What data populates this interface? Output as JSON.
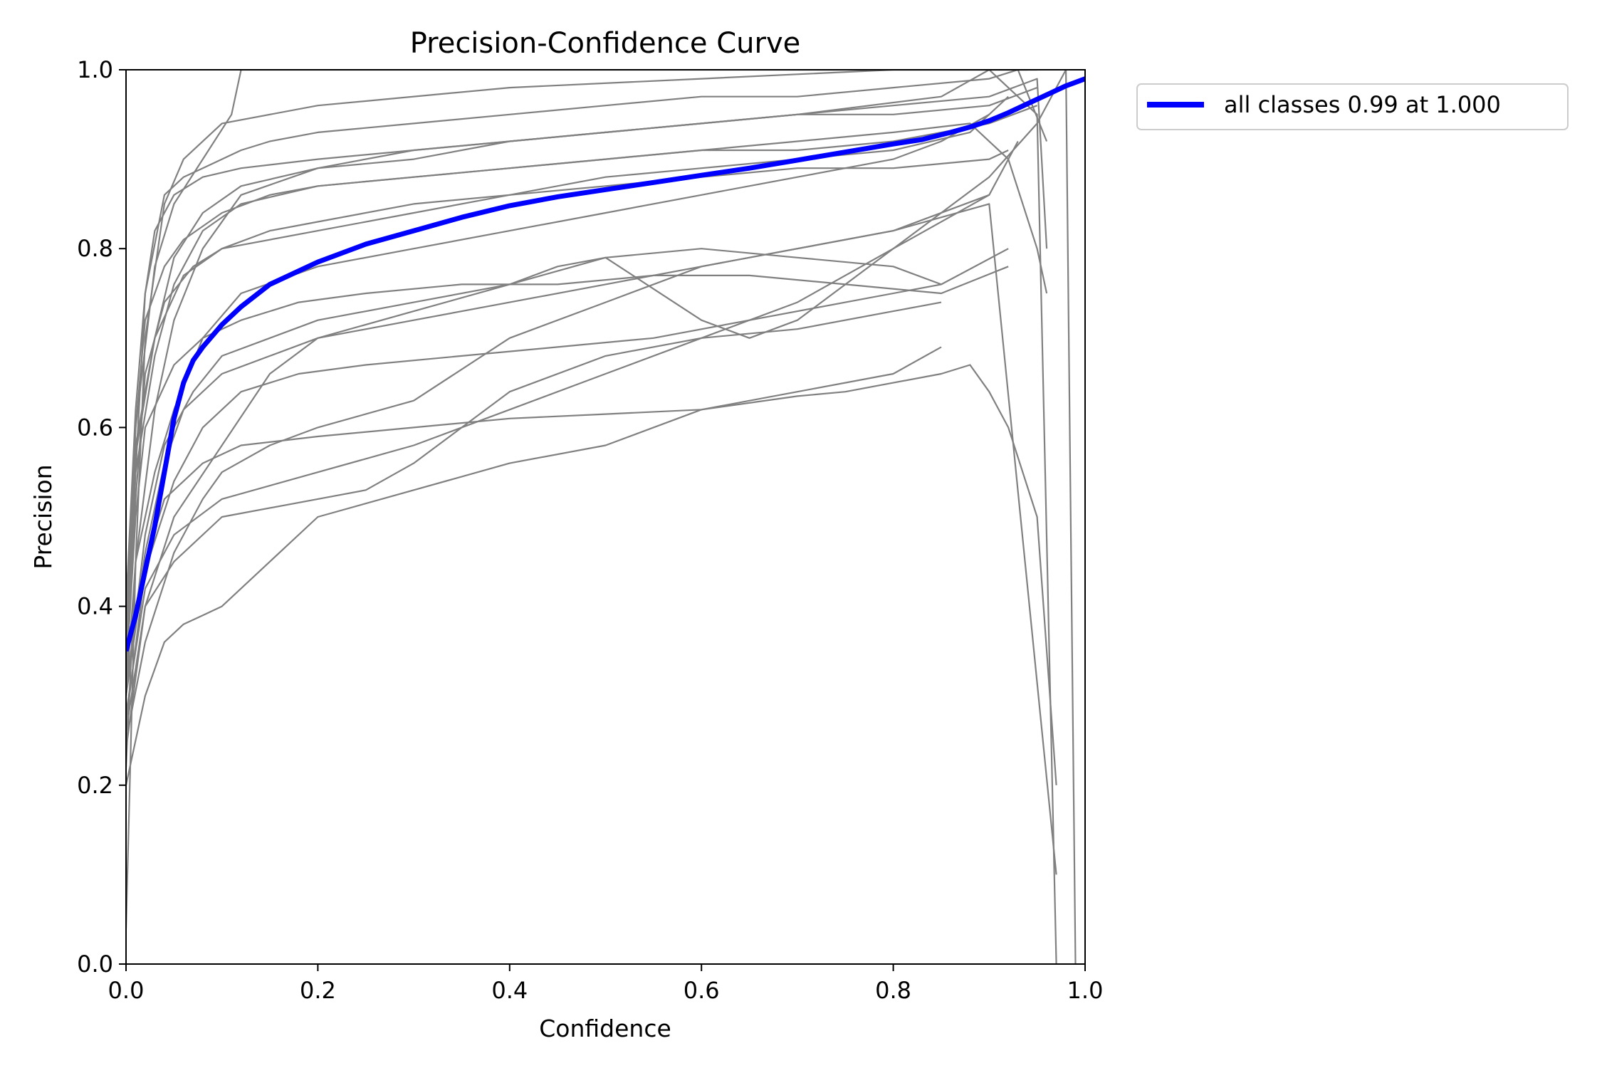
{
  "chart_data": {
    "type": "line",
    "title": "Precision-Confidence Curve",
    "xlabel": "Confidence",
    "ylabel": "Precision",
    "xlim": [
      0.0,
      1.0
    ],
    "ylim": [
      0.0,
      1.0
    ],
    "x_ticks": [
      "0.0",
      "0.2",
      "0.4",
      "0.6",
      "0.8",
      "1.0"
    ],
    "y_ticks": [
      "0.0",
      "0.2",
      "0.4",
      "0.6",
      "0.8",
      "1.0"
    ],
    "grid": false,
    "legend": {
      "placement": "outside-top-right",
      "entries": [
        "all classes 0.99 at 1.000"
      ]
    },
    "colors": {
      "per_class": "#808080",
      "all_classes": "#0000ff"
    },
    "series": [
      {
        "name": "all classes 0.99 at 1.000",
        "color": "#0000ff",
        "x": [
          0.0,
          0.01,
          0.02,
          0.03,
          0.04,
          0.05,
          0.06,
          0.07,
          0.08,
          0.1,
          0.12,
          0.15,
          0.18,
          0.2,
          0.25,
          0.3,
          0.35,
          0.4,
          0.45,
          0.5,
          0.55,
          0.6,
          0.65,
          0.7,
          0.75,
          0.8,
          0.83,
          0.86,
          0.88,
          0.9,
          0.92,
          0.94,
          0.96,
          0.98,
          1.0
        ],
        "y": [
          0.35,
          0.39,
          0.44,
          0.49,
          0.55,
          0.61,
          0.65,
          0.675,
          0.69,
          0.715,
          0.735,
          0.76,
          0.775,
          0.785,
          0.805,
          0.82,
          0.835,
          0.848,
          0.858,
          0.866,
          0.874,
          0.882,
          0.89,
          0.899,
          0.908,
          0.917,
          0.922,
          0.93,
          0.936,
          0.943,
          0.952,
          0.962,
          0.972,
          0.982,
          0.99
        ]
      },
      {
        "color": "#808080",
        "x": [
          0.0,
          0.01,
          0.02,
          0.04,
          0.06,
          0.1,
          0.2,
          0.4,
          0.6,
          0.8,
          0.9,
          0.95,
          0.97
        ],
        "y": [
          0.04,
          0.45,
          0.7,
          0.85,
          0.9,
          0.94,
          0.96,
          0.98,
          0.99,
          1.0,
          1.0,
          0.95,
          0.0
        ]
      },
      {
        "color": "#808080",
        "x": [
          0.0,
          0.01,
          0.03,
          0.05,
          0.08,
          0.12,
          0.2,
          0.3,
          0.5,
          0.7,
          0.85,
          0.9,
          0.95
        ],
        "y": [
          0.22,
          0.45,
          0.62,
          0.72,
          0.8,
          0.86,
          0.89,
          0.91,
          0.93,
          0.95,
          0.97,
          1.0,
          1.0
        ]
      },
      {
        "color": "#808080",
        "x": [
          0.0,
          0.01,
          0.03,
          0.05,
          0.08,
          0.12,
          0.2,
          0.3,
          0.4,
          0.5,
          0.6,
          0.7,
          0.8,
          0.85,
          0.9
        ],
        "y": [
          0.3,
          0.45,
          0.55,
          0.62,
          0.7,
          0.75,
          0.78,
          0.8,
          0.82,
          0.84,
          0.86,
          0.88,
          0.9,
          0.92,
          0.95
        ]
      },
      {
        "color": "#808080",
        "x": [
          0.0,
          0.02,
          0.05,
          0.08,
          0.1,
          0.15,
          0.2,
          0.3,
          0.4,
          0.5,
          0.6,
          0.7,
          0.8,
          0.9,
          0.93
        ],
        "y": [
          0.25,
          0.36,
          0.46,
          0.52,
          0.55,
          0.58,
          0.6,
          0.63,
          0.7,
          0.74,
          0.78,
          0.8,
          0.82,
          0.86,
          0.92
        ]
      },
      {
        "color": "#808080",
        "x": [
          0.0,
          0.02,
          0.04,
          0.06,
          0.08,
          0.1,
          0.15,
          0.2,
          0.3,
          0.4,
          0.5,
          0.6,
          0.7,
          0.8,
          0.85
        ],
        "y": [
          0.2,
          0.3,
          0.36,
          0.38,
          0.39,
          0.4,
          0.45,
          0.5,
          0.53,
          0.56,
          0.58,
          0.62,
          0.64,
          0.66,
          0.69
        ]
      },
      {
        "color": "#808080",
        "x": [
          0.0,
          0.02,
          0.04,
          0.08,
          0.12,
          0.2,
          0.3,
          0.4,
          0.5,
          0.6,
          0.7,
          0.75,
          0.8,
          0.85,
          0.88,
          0.9,
          0.92,
          0.95,
          0.97
        ],
        "y": [
          0.3,
          0.45,
          0.52,
          0.56,
          0.58,
          0.59,
          0.6,
          0.61,
          0.615,
          0.62,
          0.635,
          0.64,
          0.65,
          0.66,
          0.67,
          0.64,
          0.6,
          0.5,
          0.2
        ]
      },
      {
        "color": "#808080",
        "x": [
          0.0,
          0.01,
          0.02,
          0.04,
          0.06,
          0.08,
          0.1,
          0.12,
          0.15,
          0.2,
          0.3,
          0.4,
          0.5,
          0.6,
          0.7,
          0.8,
          0.9,
          0.93,
          0.96
        ],
        "y": [
          0.3,
          0.55,
          0.75,
          0.86,
          0.88,
          0.89,
          0.9,
          0.91,
          0.92,
          0.93,
          0.94,
          0.95,
          0.96,
          0.97,
          0.97,
          0.98,
          0.99,
          1.0,
          0.92
        ]
      },
      {
        "color": "#808080",
        "x": [
          0.0,
          0.01,
          0.03,
          0.05,
          0.08,
          0.12,
          0.2,
          0.3,
          0.4,
          0.5,
          0.6,
          0.7,
          0.8,
          0.88,
          0.92,
          0.95,
          0.96
        ],
        "y": [
          0.35,
          0.55,
          0.68,
          0.76,
          0.82,
          0.85,
          0.87,
          0.88,
          0.89,
          0.9,
          0.91,
          0.92,
          0.93,
          0.94,
          0.9,
          0.8,
          0.75
        ]
      },
      {
        "color": "#808080",
        "x": [
          0.0,
          0.01,
          0.02,
          0.04,
          0.06,
          0.1,
          0.15,
          0.2,
          0.3,
          0.4,
          0.5,
          0.6,
          0.7,
          0.8,
          0.9,
          0.95
        ],
        "y": [
          0.4,
          0.6,
          0.72,
          0.78,
          0.81,
          0.84,
          0.86,
          0.87,
          0.88,
          0.89,
          0.9,
          0.91,
          0.91,
          0.92,
          0.94,
          0.96
        ]
      },
      {
        "color": "#808080",
        "x": [
          0.0,
          0.02,
          0.05,
          0.1,
          0.15,
          0.2,
          0.3,
          0.4,
          0.45,
          0.5,
          0.6,
          0.7,
          0.8,
          0.85
        ],
        "y": [
          0.26,
          0.4,
          0.5,
          0.58,
          0.66,
          0.7,
          0.73,
          0.76,
          0.78,
          0.79,
          0.8,
          0.79,
          0.78,
          0.76
        ]
      },
      {
        "color": "#808080",
        "x": [
          0.0,
          0.01,
          0.03,
          0.05,
          0.08,
          0.11,
          0.12,
          0.13,
          0.2,
          0.4,
          0.6,
          0.8,
          0.9,
          0.94
        ],
        "y": [
          0.38,
          0.6,
          0.78,
          0.85,
          0.9,
          0.95,
          1.0,
          1.0,
          1.0,
          1.0,
          1.0,
          1.0,
          1.0,
          1.0
        ]
      },
      {
        "color": "#808080",
        "x": [
          0.0,
          0.01,
          0.02,
          0.05,
          0.08,
          0.12,
          0.18,
          0.25,
          0.35,
          0.45,
          0.55,
          0.65,
          0.75,
          0.85,
          0.92
        ],
        "y": [
          0.32,
          0.5,
          0.6,
          0.67,
          0.7,
          0.72,
          0.74,
          0.75,
          0.76,
          0.76,
          0.77,
          0.77,
          0.76,
          0.75,
          0.78
        ]
      },
      {
        "color": "#808080",
        "x": [
          0.0,
          0.02,
          0.05,
          0.1,
          0.2,
          0.3,
          0.4,
          0.5,
          0.6,
          0.7,
          0.8,
          0.9,
          0.95,
          0.98,
          0.99
        ],
        "y": [
          0.28,
          0.42,
          0.48,
          0.52,
          0.55,
          0.58,
          0.62,
          0.66,
          0.7,
          0.74,
          0.8,
          0.88,
          0.94,
          1.0,
          0.0
        ]
      },
      {
        "color": "#808080",
        "x": [
          0.0,
          0.01,
          0.03,
          0.06,
          0.1,
          0.2,
          0.3,
          0.4,
          0.5,
          0.6,
          0.7,
          0.8,
          0.9,
          0.92
        ],
        "y": [
          0.36,
          0.58,
          0.7,
          0.77,
          0.8,
          0.82,
          0.84,
          0.86,
          0.87,
          0.88,
          0.89,
          0.89,
          0.9,
          0.91
        ]
      },
      {
        "color": "#808080",
        "x": [
          0.0,
          0.02,
          0.04,
          0.07,
          0.1,
          0.15,
          0.2,
          0.3,
          0.4,
          0.5,
          0.6,
          0.65,
          0.7,
          0.8,
          0.9
        ],
        "y": [
          0.3,
          0.48,
          0.58,
          0.64,
          0.68,
          0.7,
          0.72,
          0.74,
          0.76,
          0.79,
          0.72,
          0.7,
          0.72,
          0.8,
          0.86
        ]
      },
      {
        "color": "#808080",
        "x": [
          0.0,
          0.01,
          0.02,
          0.04,
          0.07,
          0.1,
          0.15,
          0.2,
          0.3,
          0.4,
          0.5,
          0.6,
          0.7,
          0.8,
          0.88,
          0.92
        ],
        "y": [
          0.33,
          0.52,
          0.66,
          0.74,
          0.78,
          0.8,
          0.82,
          0.83,
          0.85,
          0.86,
          0.88,
          0.89,
          0.9,
          0.91,
          0.93,
          0.97
        ]
      },
      {
        "color": "#808080",
        "x": [
          0.0,
          0.02,
          0.05,
          0.1,
          0.2,
          0.25,
          0.3,
          0.35,
          0.4,
          0.5,
          0.6,
          0.7,
          0.8,
          0.85
        ],
        "y": [
          0.24,
          0.4,
          0.45,
          0.5,
          0.52,
          0.53,
          0.56,
          0.6,
          0.64,
          0.68,
          0.7,
          0.71,
          0.73,
          0.74
        ]
      },
      {
        "color": "#808080",
        "x": [
          0.0,
          0.01,
          0.03,
          0.05,
          0.08,
          0.12,
          0.2,
          0.3,
          0.4,
          0.5,
          0.6,
          0.7,
          0.8,
          0.9,
          0.95
        ],
        "y": [
          0.37,
          0.57,
          0.7,
          0.79,
          0.84,
          0.87,
          0.89,
          0.9,
          0.92,
          0.93,
          0.94,
          0.95,
          0.95,
          0.96,
          0.98
        ]
      },
      {
        "color": "#808080",
        "x": [
          0.0,
          0.02,
          0.05,
          0.08,
          0.12,
          0.18,
          0.25,
          0.35,
          0.45,
          0.55,
          0.65,
          0.75,
          0.85,
          0.92
        ],
        "y": [
          0.27,
          0.44,
          0.54,
          0.6,
          0.64,
          0.66,
          0.67,
          0.68,
          0.69,
          0.7,
          0.72,
          0.74,
          0.76,
          0.8
        ]
      },
      {
        "color": "#808080",
        "x": [
          0.0,
          0.01,
          0.02,
          0.03,
          0.05,
          0.08,
          0.12,
          0.2,
          0.3,
          0.4,
          0.5,
          0.6,
          0.7,
          0.8,
          0.9,
          0.95,
          0.96
        ],
        "y": [
          0.4,
          0.62,
          0.75,
          0.82,
          0.86,
          0.88,
          0.89,
          0.9,
          0.91,
          0.92,
          0.93,
          0.94,
          0.95,
          0.96,
          0.97,
          0.99,
          0.8
        ]
      },
      {
        "color": "#808080",
        "x": [
          0.0,
          0.02,
          0.04,
          0.06,
          0.1,
          0.15,
          0.2,
          0.3,
          0.4,
          0.5,
          0.6,
          0.7,
          0.8,
          0.9,
          0.97
        ],
        "y": [
          0.31,
          0.46,
          0.56,
          0.62,
          0.66,
          0.68,
          0.7,
          0.72,
          0.74,
          0.76,
          0.78,
          0.8,
          0.82,
          0.85,
          0.1
        ]
      }
    ]
  }
}
